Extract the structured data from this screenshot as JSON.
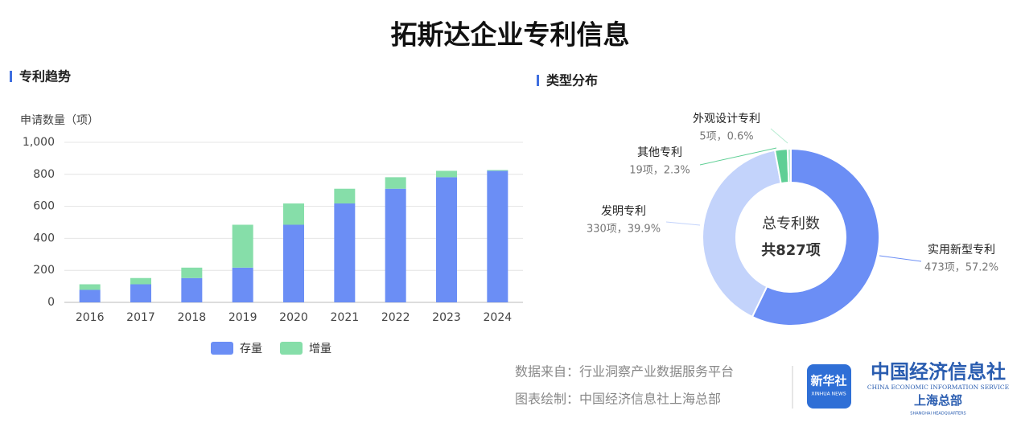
{
  "title": "拓斯达企业专利信息",
  "footer": {
    "source": "数据来自：行业洞察产业数据服务平台",
    "credit": "图表绘制：中国经济信息社上海总部"
  },
  "logo": {
    "badge": "新华社",
    "badge_sub": "XINHUA NEWS",
    "name": "中国经济信息社",
    "name_en": "CHINA ECONOMIC INFORMATION SERVICE",
    "branch": "上海总部",
    "branch_en": "SHANGHAI HEADQUARTERS"
  },
  "chart_data": [
    {
      "type": "bar",
      "title": "专利趋势",
      "y_label": "申请数量（项）",
      "stacked": true,
      "grid": true,
      "categories": [
        "2016",
        "2017",
        "2018",
        "2019",
        "2020",
        "2021",
        "2022",
        "2023",
        "2024"
      ],
      "series": [
        {
          "name": "存量",
          "color": "#6b8ef5",
          "values": [
            78,
            113,
            152,
            217,
            485,
            618,
            710,
            782,
            822
          ]
        },
        {
          "name": "增量",
          "color": "#86dea9",
          "values": [
            35,
            39,
            65,
            268,
            133,
            92,
            72,
            40,
            5
          ]
        }
      ],
      "ylim": [
        0,
        1000
      ],
      "yticks": [
        0,
        200,
        400,
        600,
        800,
        {
          "value": 1000,
          "label": "1,000"
        }
      ]
    },
    {
      "type": "pie",
      "title": "类型分布",
      "donut": true,
      "center_title": "总专利数",
      "center_label": "共827项",
      "categories": [
        "实用新型专利",
        "发明专利",
        "其他专利",
        "外观设计专利"
      ],
      "values": [
        473,
        330,
        19,
        5
      ],
      "value_labels": [
        "473项，57.2%",
        "330项，39.9%",
        "19项，2.3%",
        "5项，0.6%"
      ],
      "colors": [
        "#6b8ef5",
        "#c3d3fb",
        "#5fcf95",
        "#b7ecd2"
      ]
    }
  ]
}
